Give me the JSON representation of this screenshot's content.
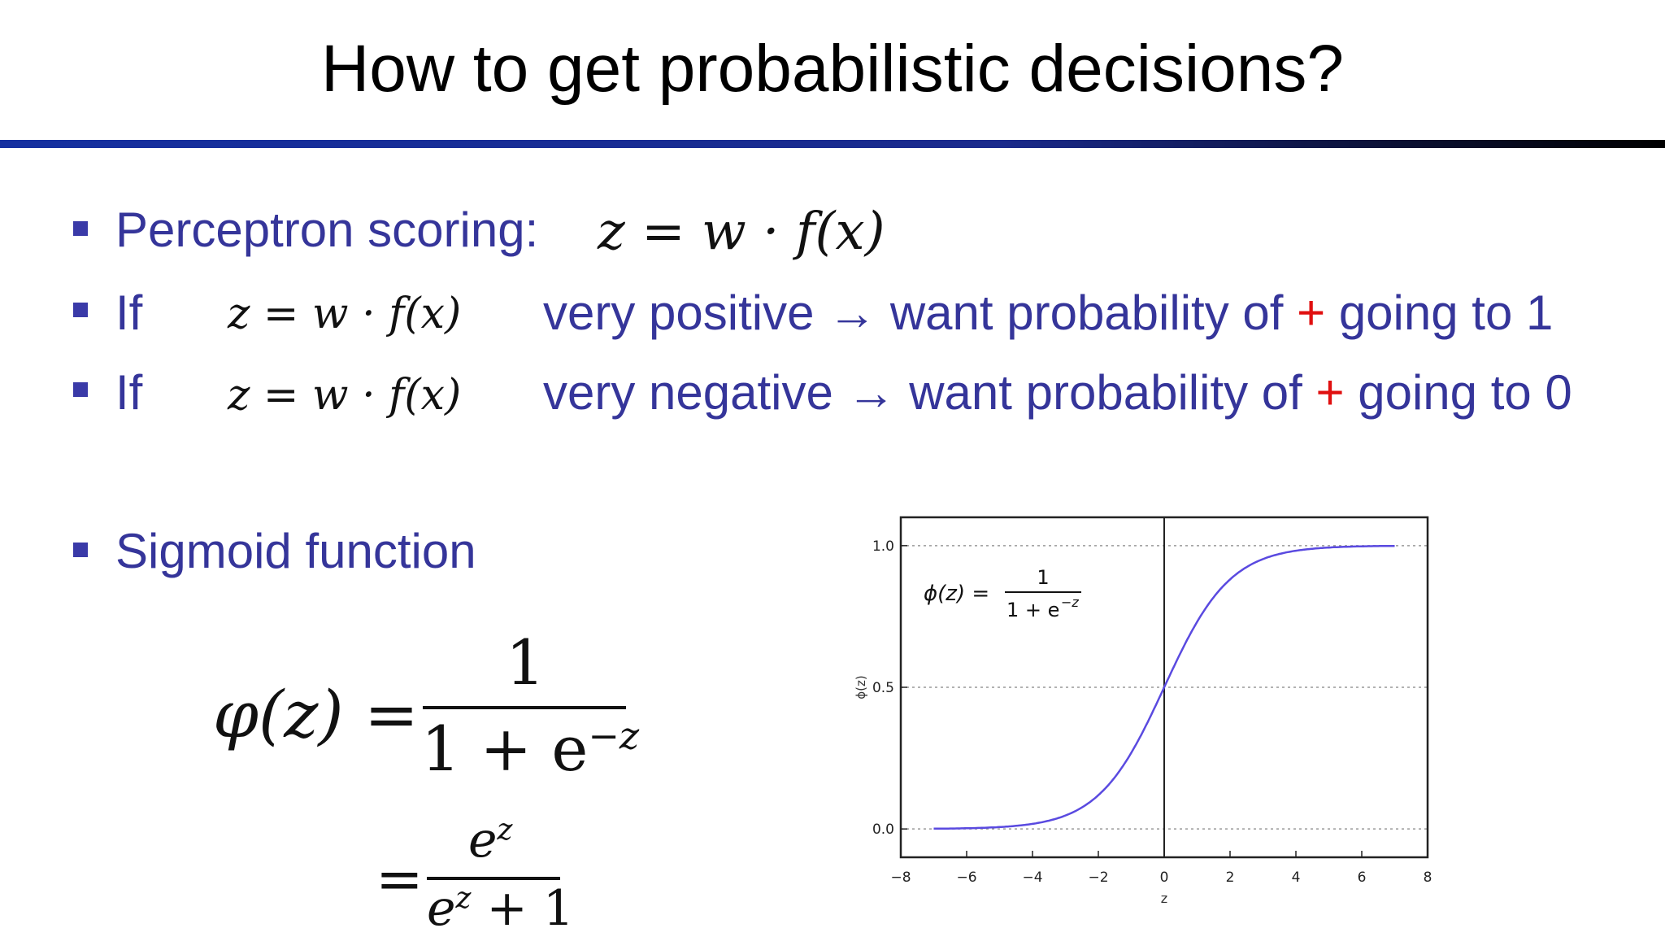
{
  "title": "How to get probabilistic decisions?",
  "bullets": {
    "b1_label": "Perceptron scoring:",
    "b2_label": "If",
    "b2_text_a": "very positive",
    "b2_text_b": "want probability of",
    "b2_plus": "+",
    "b2_text_c": "going to 1",
    "b3_label": "If",
    "b3_text_a": "very negative",
    "b3_text_b": "want probability of",
    "b3_plus": "+",
    "b3_text_c": "going to 0",
    "b4_label": "Sigmoid function",
    "arrow": "→"
  },
  "formulas": {
    "score_big": "z = w · f(x)",
    "score_small": "z = w · f(x)",
    "sigmoid_lhs": "φ(z) =",
    "sigmoid_num": "1",
    "sigmoid_den": "1 + e",
    "sigmoid_den_sup": "−z",
    "alt_eq": "=",
    "alt_num": "e",
    "alt_num_sup": "z",
    "alt_den": "e",
    "alt_den_sup": "z",
    "alt_den_tail": " + 1"
  },
  "colors": {
    "bullet_text": "#35359a",
    "plus": "#e01010",
    "curve": "#5a4ae0"
  },
  "chart_data": {
    "type": "line",
    "series": [
      {
        "function": "sigmoid",
        "x": [
          -7,
          -6,
          -5,
          -4,
          -3,
          -2,
          -1,
          0,
          1,
          2,
          3,
          4,
          5,
          6,
          7
        ],
        "y": [
          0.0009,
          0.0025,
          0.0067,
          0.018,
          0.047,
          0.119,
          0.269,
          0.5,
          0.731,
          0.881,
          0.953,
          0.982,
          0.993,
          0.9975,
          0.9991
        ]
      }
    ],
    "xlabel": "z",
    "ylabel": "ϕ(z)",
    "xlim": [
      -8,
      8
    ],
    "ylim": [
      -0.1,
      1.1
    ],
    "xticks": [
      "−8",
      "−6",
      "−4",
      "−2",
      "0",
      "2",
      "4",
      "6",
      "8"
    ],
    "yticks": [
      "0.0",
      "0.5",
      "1.0"
    ],
    "annotation": {
      "lhs": "ϕ(z) =",
      "num": "1",
      "den": "1 + e",
      "den_sup": "−z"
    },
    "grid": "horizontal dotted at 0, 0.5, 1.0",
    "vline_at": 0
  }
}
